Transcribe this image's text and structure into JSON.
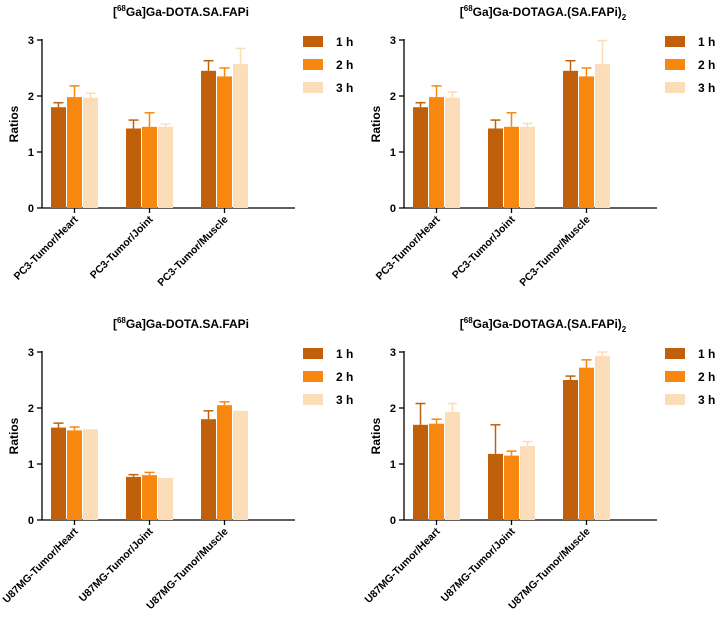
{
  "colors": {
    "1 h": "#C0600B",
    "2 h": "#F7870F",
    "3 h": "#FCDDBA"
  },
  "chart_data": [
    {
      "type": "bar",
      "title_prefix": "[",
      "title_sup": "68",
      "title_main": "Ga]Ga-DOTA.SA.FAPi",
      "title_sub": "",
      "ylabel": "Ratios",
      "ylim": [
        0,
        3
      ],
      "yticks": [
        "0",
        "1",
        "2",
        "3"
      ],
      "categories": [
        "PC3-Tumor/Heart",
        "PC3-Tumor/Joint",
        "PC3-Tumor/Muscle"
      ],
      "series": [
        {
          "name": "1 h",
          "values": [
            1.8,
            1.42,
            2.45
          ],
          "errors": [
            0.08,
            0.15,
            0.18
          ]
        },
        {
          "name": "2 h",
          "values": [
            1.98,
            1.45,
            2.35
          ],
          "errors": [
            0.2,
            0.25,
            0.15
          ]
        },
        {
          "name": "3 h",
          "values": [
            1.97,
            1.45,
            2.57
          ],
          "errors": [
            0.08,
            0.05,
            0.28
          ]
        }
      ]
    },
    {
      "type": "bar",
      "title_prefix": "[",
      "title_sup": "68",
      "title_main": "Ga]Ga-DOTAGA.(SA.FAPi)",
      "title_sub": "2",
      "ylabel": "Ratios",
      "ylim": [
        0,
        3
      ],
      "yticks": [
        "0",
        "1",
        "2",
        "3"
      ],
      "categories": [
        "PC3-Tumor/Heart",
        "PC3-Tumor/Joint",
        "PC3-Tumor/Muscle"
      ],
      "series": [
        {
          "name": "1 h",
          "values": [
            1.8,
            1.42,
            2.45
          ],
          "errors": [
            0.08,
            0.15,
            0.18
          ]
        },
        {
          "name": "2 h",
          "values": [
            1.98,
            1.45,
            2.35
          ],
          "errors": [
            0.2,
            0.25,
            0.15
          ]
        },
        {
          "name": "3 h",
          "values": [
            1.97,
            1.45,
            2.57
          ],
          "errors": [
            0.1,
            0.06,
            0.42
          ]
        }
      ]
    },
    {
      "type": "bar",
      "title_prefix": "[",
      "title_sup": "68",
      "title_main": "Ga]Ga-DOTA.SA.FAPi",
      "title_sub": "",
      "ylabel": "Ratios",
      "ylim": [
        0,
        3
      ],
      "yticks": [
        "0",
        "1",
        "2",
        "3"
      ],
      "categories": [
        "U87MG-Tumor/Heart",
        "U87MG-Tumor/Joint",
        "U87MG-Tumor/Muscle"
      ],
      "series": [
        {
          "name": "1 h",
          "values": [
            1.65,
            0.77,
            1.8
          ],
          "errors": [
            0.08,
            0.04,
            0.15
          ]
        },
        {
          "name": "2 h",
          "values": [
            1.6,
            0.8,
            2.05
          ],
          "errors": [
            0.06,
            0.05,
            0.06
          ]
        },
        {
          "name": "3 h",
          "values": [
            1.62,
            0.75,
            1.95
          ],
          "errors": [
            0.0,
            0.0,
            0.0
          ]
        }
      ]
    },
    {
      "type": "bar",
      "title_prefix": "[",
      "title_sup": "68",
      "title_main": "Ga]Ga-DOTAGA.(SA.FAPi)",
      "title_sub": "2",
      "ylabel": "Ratios",
      "ylim": [
        0,
        3
      ],
      "yticks": [
        "0",
        "1",
        "2",
        "3"
      ],
      "categories": [
        "U87MG-Tumor/Heart",
        "U87MG-Tumor/Joint",
        "U87MG-Tumor/Muscle"
      ],
      "series": [
        {
          "name": "1 h",
          "values": [
            1.7,
            1.18,
            2.5
          ],
          "errors": [
            0.38,
            0.52,
            0.07
          ]
        },
        {
          "name": "2 h",
          "values": [
            1.72,
            1.15,
            2.72
          ],
          "errors": [
            0.08,
            0.08,
            0.14
          ]
        },
        {
          "name": "3 h",
          "values": [
            1.93,
            1.32,
            2.93
          ],
          "errors": [
            0.15,
            0.08,
            0.07
          ]
        }
      ]
    }
  ]
}
